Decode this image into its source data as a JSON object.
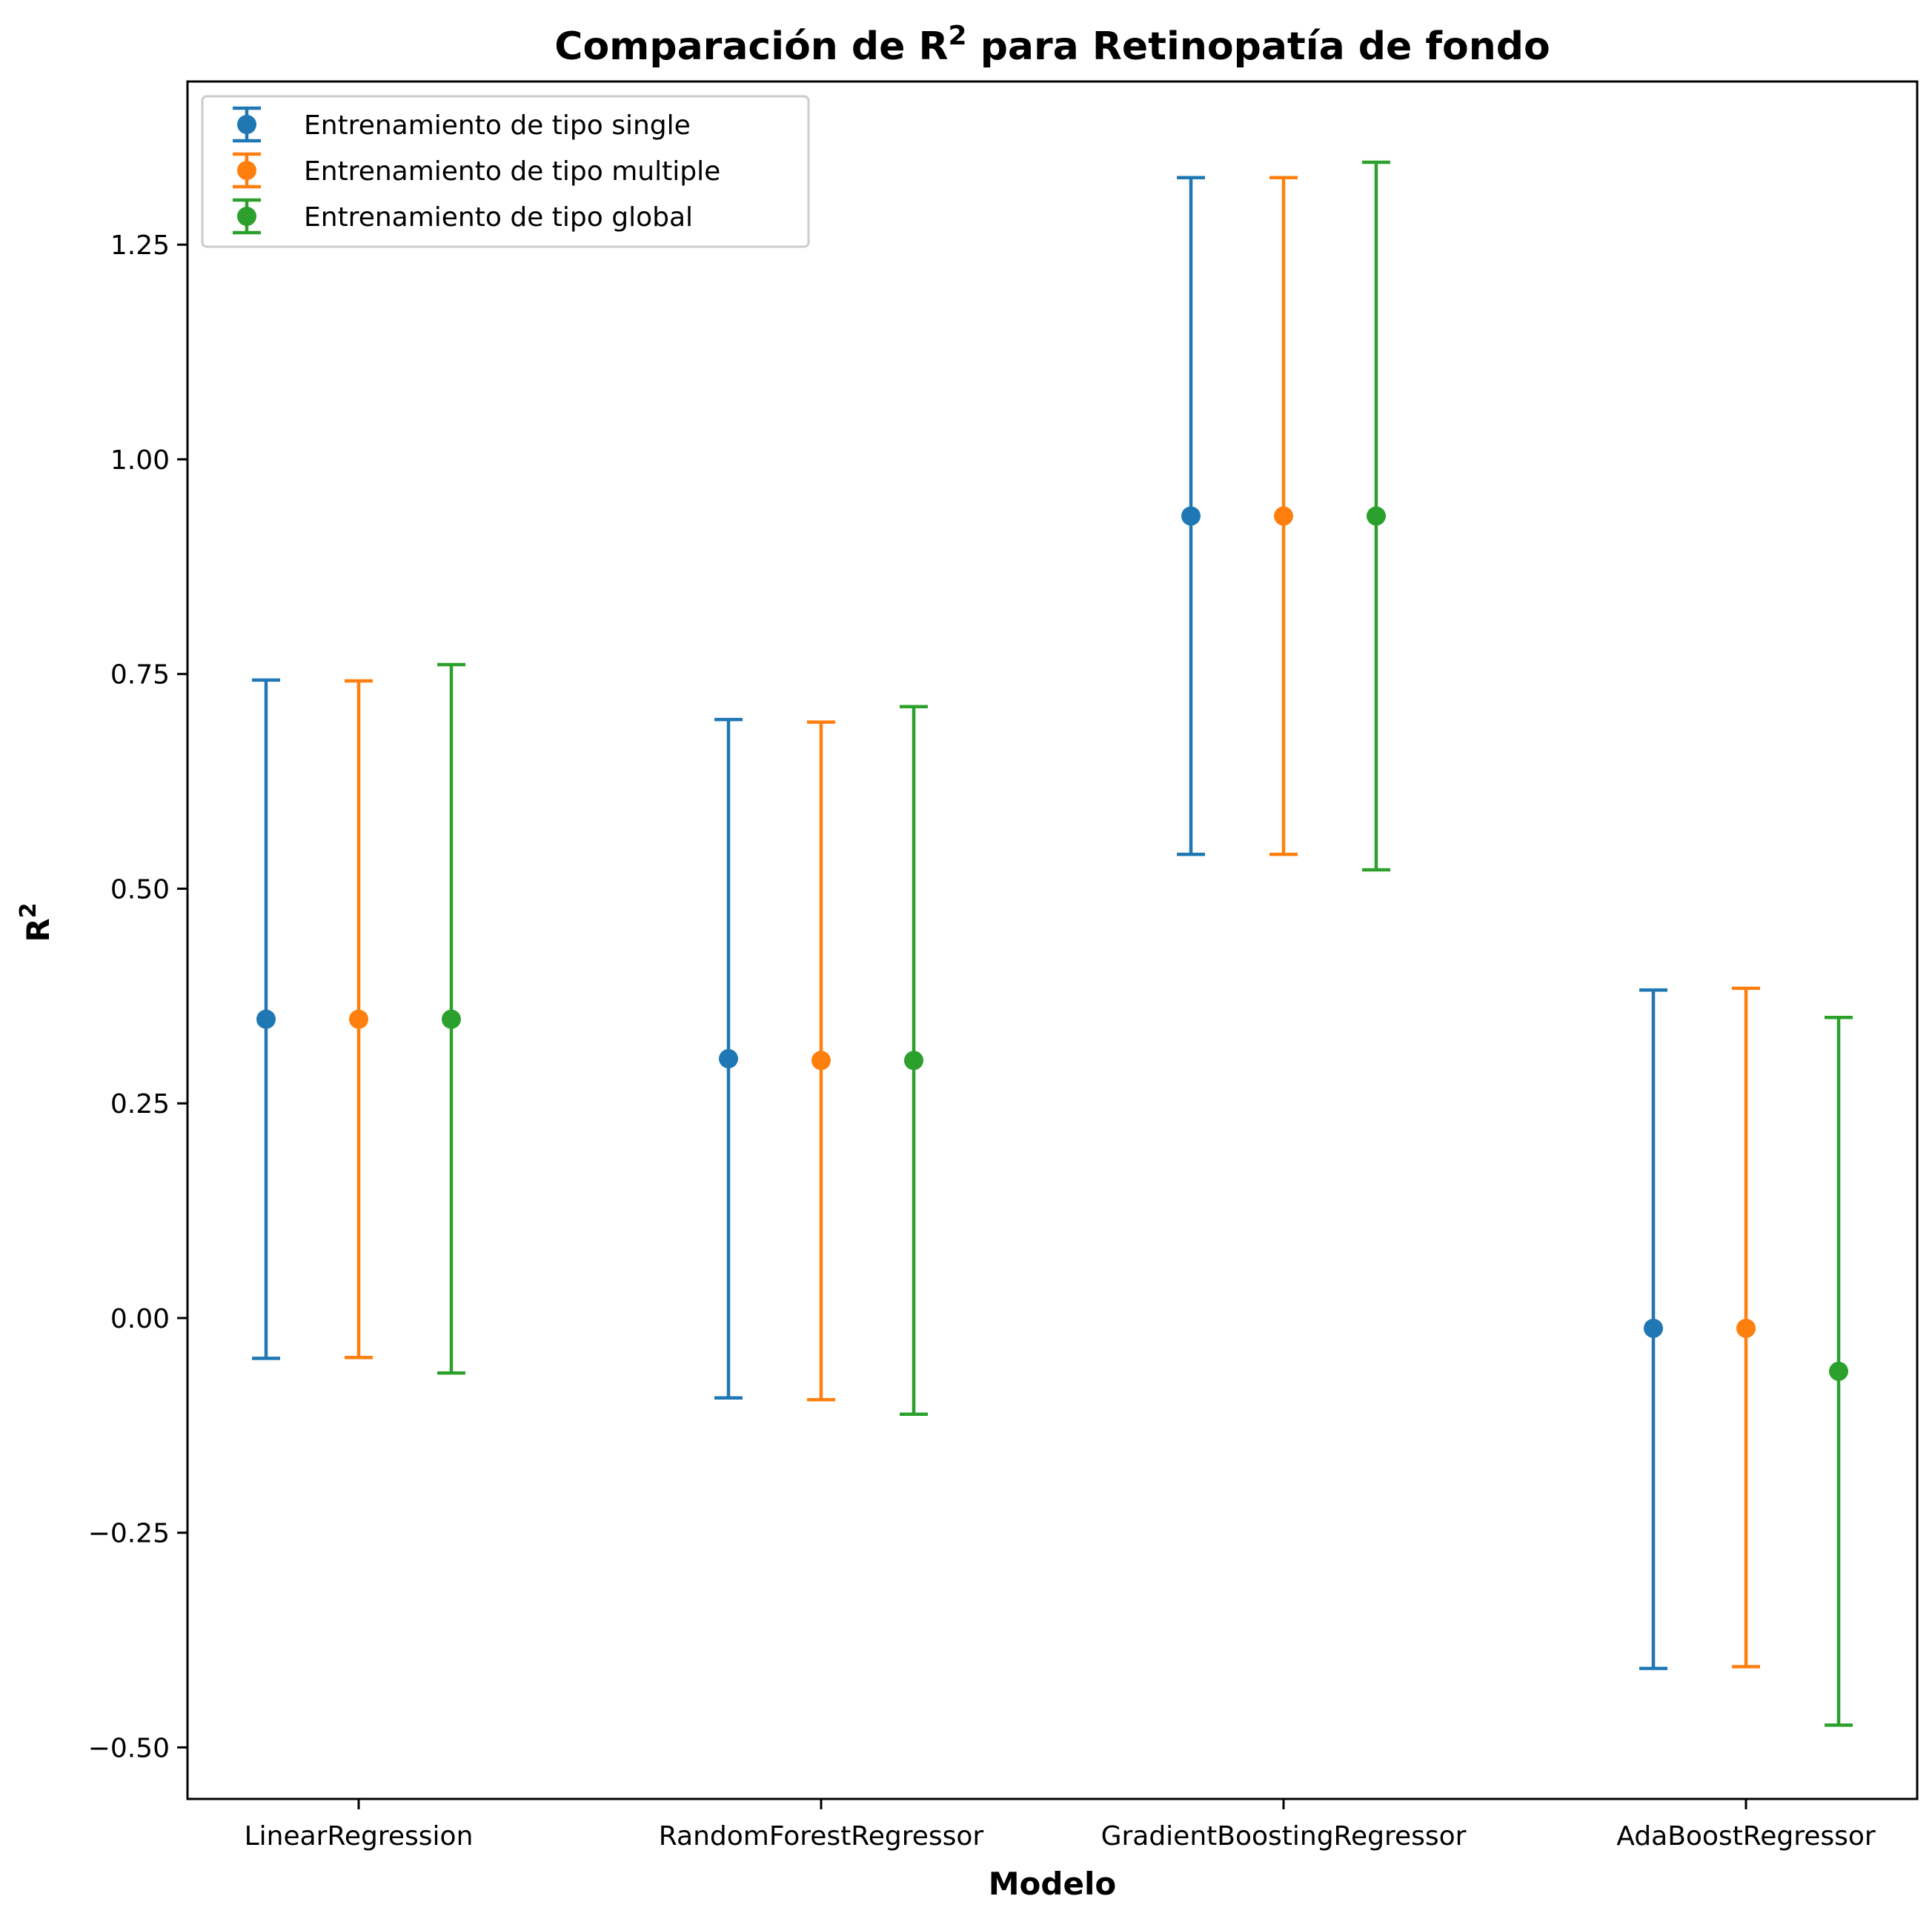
{
  "chart_data": {
    "type": "scatter",
    "title_main": "Comparación de R",
    "title_sup": "2",
    "title_rest": " para Retinopatía de fondo",
    "xlabel": "Modelo",
    "ylabel_main": "R",
    "ylabel_sup": "2",
    "categories": [
      "LinearRegression",
      "RandomForestRegressor",
      "GradientBoostingRegressor",
      "AdaBoostRegressor"
    ],
    "yticks": [
      -0.5,
      -0.25,
      0.0,
      0.25,
      0.5,
      0.75,
      1.0,
      1.25
    ],
    "ytick_labels": [
      "−0.50",
      "−0.25",
      "0.00",
      "0.25",
      "0.50",
      "0.75",
      "1.00",
      "1.25"
    ],
    "ylim": [
      -0.56,
      1.44
    ],
    "legend_position": "top-left",
    "grid": false,
    "series": [
      {
        "name": "Entrenamiento de tipo single",
        "color": "#1f77b4",
        "values": [
          0.348,
          0.302,
          0.934,
          -0.012
        ],
        "lower": [
          -0.047,
          -0.093,
          0.54,
          -0.408
        ],
        "upper": [
          0.743,
          0.697,
          1.328,
          0.382
        ]
      },
      {
        "name": "Entrenamiento  de tipo multiple",
        "color": "#ff7f0e",
        "values": [
          0.348,
          0.3,
          0.934,
          -0.012
        ],
        "lower": [
          -0.046,
          -0.095,
          0.54,
          -0.406
        ],
        "upper": [
          0.742,
          0.694,
          1.328,
          0.384
        ]
      },
      {
        "name": "Entrenamiento de tipo global",
        "color": "#2ca02c",
        "values": [
          0.348,
          0.3,
          0.934,
          -0.062
        ],
        "lower": [
          -0.064,
          -0.112,
          0.522,
          -0.474
        ],
        "upper": [
          0.761,
          0.712,
          1.346,
          0.35
        ]
      }
    ]
  }
}
